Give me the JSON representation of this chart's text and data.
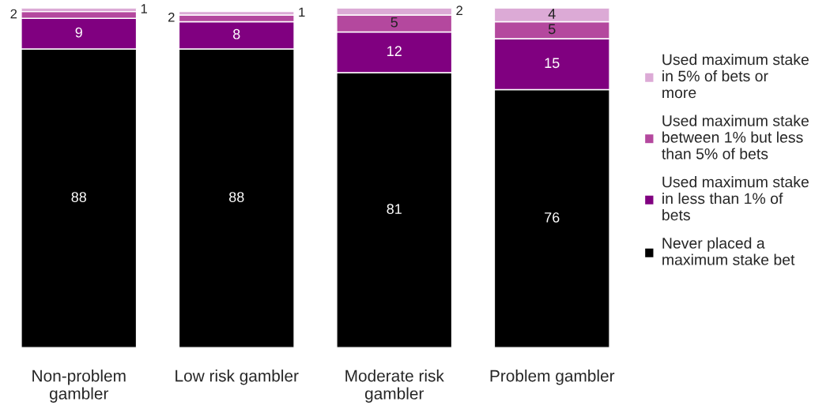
{
  "chart_data": {
    "type": "bar",
    "stacked": true,
    "data_labels": true,
    "legend": "right",
    "tick_labels": "x",
    "grid": false,
    "categories": [
      "Non-problem gambler",
      "Low risk gambler",
      "Moderate risk gambler",
      "Problem gambler"
    ],
    "series": [
      {
        "name": "Never placed a maximum stake bet",
        "color": "#000000",
        "values": [
          88,
          88,
          81,
          76
        ]
      },
      {
        "name": "Used maximum stake in less than 1% of bets",
        "color": "#800080",
        "values": [
          9,
          8,
          12,
          15
        ]
      },
      {
        "name": "Used maximum stake between 1% but less than 5% of bets",
        "color": "#b4489e",
        "values": [
          2,
          2,
          5,
          5
        ]
      },
      {
        "name": "Used maximum stake in 5% of bets or more",
        "color": "#dcaad6",
        "values": [
          1,
          1,
          2,
          4
        ]
      }
    ]
  }
}
